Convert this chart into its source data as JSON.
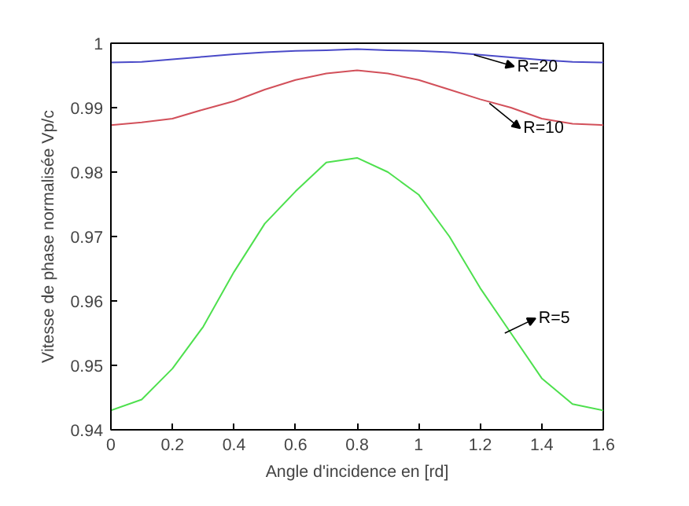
{
  "chart_data": {
    "type": "line",
    "xlabel": "Angle d'incidence en [rd]",
    "ylabel": "Vitesse de phase normalisée Vp/c",
    "x": [
      0,
      0.1,
      0.2,
      0.3,
      0.4,
      0.5,
      0.6,
      0.7,
      0.8,
      0.9,
      1.0,
      1.1,
      1.2,
      1.3,
      1.4,
      1.5,
      1.6
    ],
    "series": [
      {
        "color": "#4a4ac8",
        "values": [
          0.997,
          0.9971,
          0.9975,
          0.9979,
          0.9983,
          0.9986,
          0.9988,
          0.9989,
          0.9991,
          0.9989,
          0.9988,
          0.9986,
          0.9982,
          0.9978,
          0.9974,
          0.9971,
          0.997
        ]
      },
      {
        "color": "#d2505a",
        "values": [
          0.9873,
          0.9877,
          0.9883,
          0.9897,
          0.991,
          0.9928,
          0.9943,
          0.9953,
          0.9958,
          0.9953,
          0.9943,
          0.9928,
          0.9913,
          0.99,
          0.9883,
          0.9875,
          0.9873
        ]
      },
      {
        "color": "#4ee04e",
        "values": [
          0.943,
          0.9447,
          0.9495,
          0.956,
          0.9645,
          0.972,
          0.977,
          0.9815,
          0.9822,
          0.98,
          0.9765,
          0.97,
          0.962,
          0.955,
          0.948,
          0.944,
          0.943
        ]
      }
    ],
    "annotations": [
      {
        "text": "R=20",
        "x": 1.18,
        "y": 0.9982
      },
      {
        "text": "R=10",
        "x": 1.23,
        "y": 0.9907
      },
      {
        "text": "R=5",
        "x": 1.28,
        "y": 0.955
      }
    ],
    "xlim": [
      0,
      1.6
    ],
    "ylim": [
      0.94,
      1
    ],
    "xticks": [
      0,
      0.2,
      0.4,
      0.6,
      0.8,
      1,
      1.2,
      1.4,
      1.6
    ],
    "yticks": [
      0.94,
      0.95,
      0.96,
      0.97,
      0.98,
      0.99,
      1
    ],
    "grid": false,
    "marker": "none",
    "line_style": "solid"
  }
}
